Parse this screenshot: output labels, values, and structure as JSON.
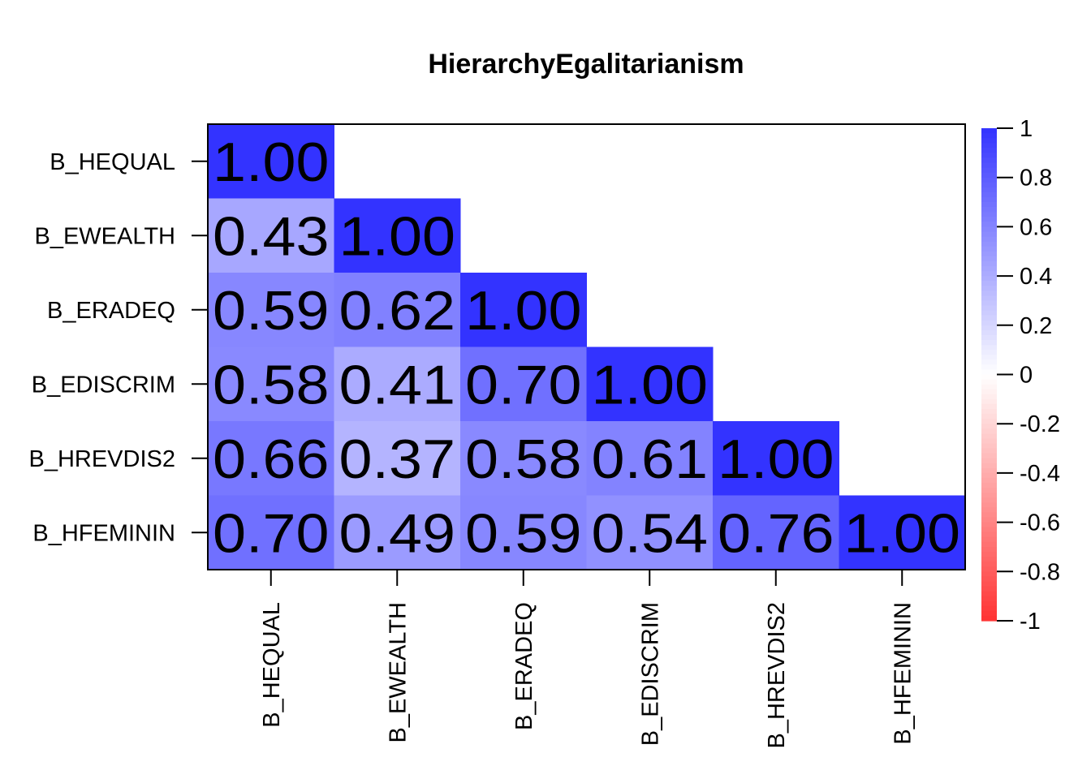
{
  "chart_data": {
    "type": "heatmap",
    "title": "HierarchyEgalitarianism",
    "row_labels": [
      "B_HEQUAL",
      "B_EWEALTH",
      "B_ERADEQ",
      "B_EDISCRIM",
      "B_HREVDIS2",
      "B_HFEMININ"
    ],
    "col_labels": [
      "B_HEQUAL",
      "B_EWEALTH",
      "B_ERADEQ",
      "B_EDISCRIM",
      "B_HREVDIS2",
      "B_HFEMININ"
    ],
    "values": [
      [
        1.0,
        null,
        null,
        null,
        null,
        null
      ],
      [
        0.43,
        1.0,
        null,
        null,
        null,
        null
      ],
      [
        0.59,
        0.62,
        1.0,
        null,
        null,
        null
      ],
      [
        0.58,
        0.41,
        0.7,
        1.0,
        null,
        null
      ],
      [
        0.66,
        0.37,
        0.58,
        0.61,
        1.0,
        null
      ],
      [
        0.7,
        0.49,
        0.59,
        0.54,
        0.76,
        1.0
      ]
    ],
    "triangle": "lower",
    "value_range": [
      -1,
      1
    ],
    "color_scale": {
      "low": "#FF3333",
      "mid": "#FFFFFF",
      "high": "#3333FF"
    },
    "legend": {
      "position": "right",
      "ticks": [
        "1",
        "0.8",
        "0.6",
        "0.4",
        "0.2",
        "0",
        "-0.2",
        "-0.4",
        "-0.6",
        "-0.8",
        "-1"
      ]
    }
  }
}
